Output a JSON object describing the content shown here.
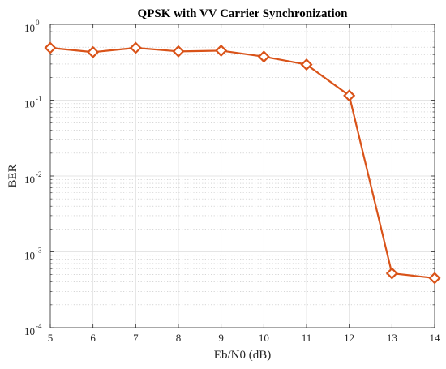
{
  "chart_data": {
    "type": "line",
    "title": "QPSK with VV Carrier Synchronization",
    "xlabel": "Eb/N0 (dB)",
    "ylabel": "BER",
    "x": [
      5,
      6,
      7,
      8,
      9,
      10,
      11,
      12,
      13,
      14
    ],
    "series": [
      {
        "values": [
          0.49,
          0.43,
          0.49,
          0.44,
          0.45,
          0.375,
          0.295,
          0.115,
          0.00052,
          0.00045
        ],
        "color": "#d95319",
        "marker": "diamond"
      }
    ],
    "xlim": [
      5,
      14
    ],
    "ylim": [
      0.0001,
      1
    ],
    "yscale": "log",
    "x_ticks": [
      "5",
      "6",
      "7",
      "8",
      "9",
      "10",
      "11",
      "12",
      "13",
      "14"
    ],
    "y_ticks": [
      {
        "base": "10",
        "exp": "0"
      },
      {
        "base": "10",
        "exp": "-1"
      },
      {
        "base": "10",
        "exp": "-2"
      },
      {
        "base": "10",
        "exp": "-3"
      },
      {
        "base": "10",
        "exp": "-4"
      }
    ],
    "grid": true,
    "minor_grid": true
  }
}
